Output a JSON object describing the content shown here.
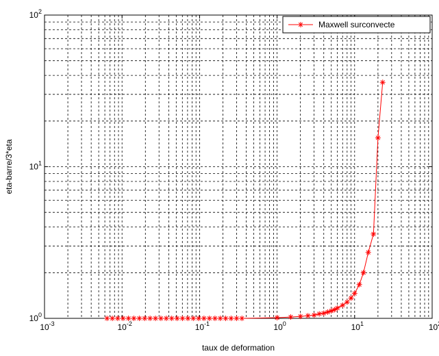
{
  "chart_data": {
    "type": "line",
    "xlabel": "taux de deformation",
    "ylabel": "eta-barre/3*eta",
    "xscale": "log",
    "yscale": "log",
    "xlim": [
      0.001,
      100
    ],
    "ylim": [
      1,
      100
    ],
    "grid": true,
    "legend_position": "top-right",
    "x_ticks": [
      {
        "value": 0.001,
        "base": "10",
        "exp": "-3"
      },
      {
        "value": 0.01,
        "base": "10",
        "exp": "-2"
      },
      {
        "value": 0.1,
        "base": "10",
        "exp": "-1"
      },
      {
        "value": 1,
        "base": "10",
        "exp": "0"
      },
      {
        "value": 10,
        "base": "10",
        "exp": "1"
      },
      {
        "value": 100,
        "base": "10",
        "exp": "2"
      }
    ],
    "y_ticks": [
      {
        "value": 1,
        "base": "10",
        "exp": "0"
      },
      {
        "value": 10,
        "base": "10",
        "exp": "1"
      },
      {
        "value": 100,
        "base": "10",
        "exp": "2"
      }
    ],
    "series": [
      {
        "name": "Maxwell surconvecte",
        "color": "#ff0000",
        "marker": "asterisk",
        "x": [
          0.0064,
          0.0075,
          0.0088,
          0.0103,
          0.0121,
          0.0142,
          0.0167,
          0.0196,
          0.023,
          0.027,
          0.0317,
          0.0372,
          0.0437,
          0.0513,
          0.0602,
          0.0707,
          0.083,
          0.0974,
          0.114,
          0.134,
          0.158,
          0.185,
          0.217,
          0.255,
          0.3,
          0.352,
          1.0,
          1.5,
          2.0,
          2.5,
          3.0,
          3.5,
          4.0,
          4.5,
          5.0,
          5.5,
          6.0,
          7.0,
          8.0,
          9.0,
          10.0,
          11.5,
          13.0,
          15.0,
          17.5,
          20.0,
          23.0
        ],
        "y": [
          1.0,
          1.0,
          1.0,
          1.0,
          1.0,
          1.0,
          1.0,
          1.0,
          1.0,
          1.0,
          1.0,
          1.0,
          1.0,
          1.0,
          1.0,
          1.0,
          1.0,
          1.0,
          1.0,
          1.0,
          1.0,
          1.0,
          1.0,
          1.0,
          1.0,
          1.0,
          1.01,
          1.02,
          1.03,
          1.04,
          1.05,
          1.07,
          1.08,
          1.1,
          1.12,
          1.14,
          1.17,
          1.22,
          1.28,
          1.36,
          1.46,
          1.67,
          2.0,
          2.72,
          3.6,
          15.5,
          36.0
        ]
      }
    ]
  }
}
